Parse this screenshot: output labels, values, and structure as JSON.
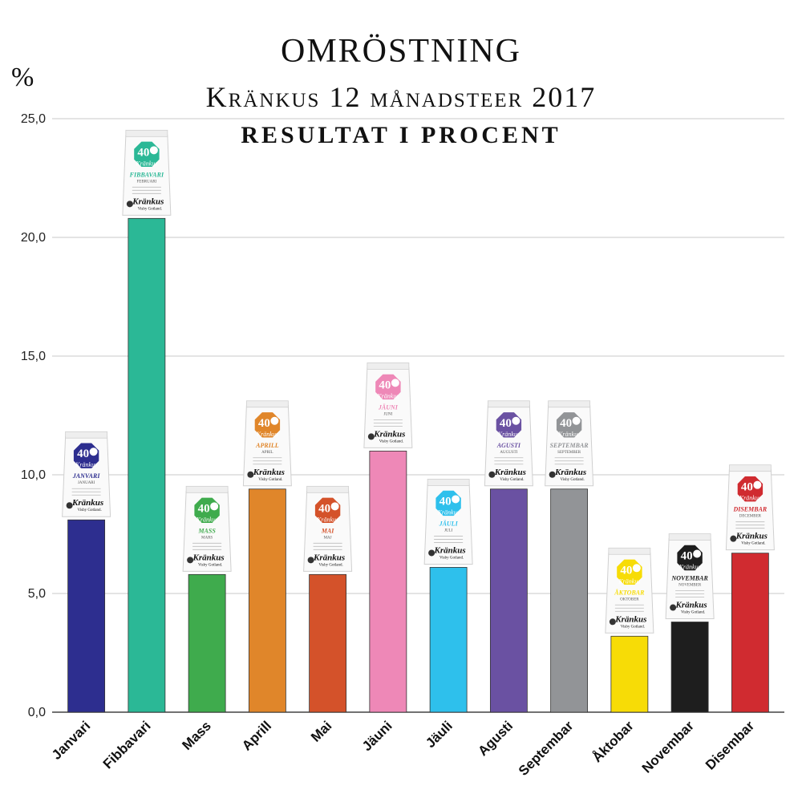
{
  "title": "OMRÖSTNING",
  "subtitle": "Kränkus 12 månadsteer 2017",
  "subtitle2": "RESULTAT I PROCENT",
  "unit_label": "%",
  "brand": {
    "number": "40",
    "name": "Kränkus",
    "place": "Visby Gotland."
  },
  "chart_data": {
    "type": "bar",
    "title": "OMRÖSTNING — Kränkus 12 månadsteer 2017 — RESULTAT I PROCENT",
    "xlabel": "",
    "ylabel": "%",
    "ylim": [
      0,
      25
    ],
    "yticks": [
      "0,0",
      "5,0",
      "10,0",
      "15,0",
      "20,0",
      "25,0"
    ],
    "grid": true,
    "categories": [
      "Janvari",
      "Fibbavari",
      "Mass",
      "Aprill",
      "Mai",
      "Jäuni",
      "Jäuli",
      "Agusti",
      "Septembar",
      "Åktobar",
      "Novembar",
      "Disembar"
    ],
    "values": [
      8.1,
      20.8,
      5.8,
      9.4,
      5.8,
      11.0,
      6.1,
      9.4,
      9.4,
      3.2,
      3.8,
      6.7
    ],
    "colors": [
      "#2d2e8f",
      "#2bb896",
      "#3fab4d",
      "#e0862a",
      "#d4522a",
      "#ee88b7",
      "#2ec0ec",
      "#6a51a2",
      "#929497",
      "#f7dc06",
      "#1e1e1e",
      "#d02b30"
    ],
    "bag_labels": [
      "JANVARI",
      "FIBBAVARI",
      "MASS",
      "APRILL",
      "MAI",
      "JÄUNI",
      "JÄULI",
      "AGUSTI",
      "SEPTEMBAR",
      "ÅKTOBAR",
      "NOVEMBAR",
      "DISEMBAR"
    ],
    "bag_sublabels": [
      "JANUARI",
      "FEBRUARI",
      "MARS",
      "APRIL",
      "MAJ",
      "JUNI",
      "JULI",
      "AUGUSTI",
      "SEPTEMBER",
      "OKTOBER",
      "NOVEMBER",
      "DECEMBER"
    ]
  }
}
